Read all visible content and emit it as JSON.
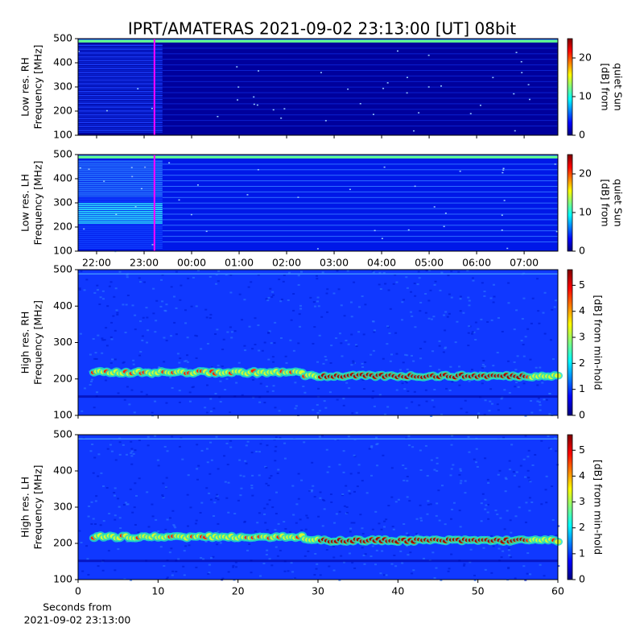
{
  "title": "IPRT/AMATERAS 2021-09-02 23:13:00 [UT]   08bit",
  "chart_data": [
    {
      "type": "spectrogram",
      "ylabel": [
        "Low res. RH",
        "Frequency [MHz]"
      ],
      "ylim": [
        100,
        500
      ],
      "yticks": [
        100,
        200,
        300,
        400,
        500
      ],
      "xlim": [
        21.61,
        31.71
      ],
      "xticks": [
        {
          "value": 22,
          "label": "22:00"
        },
        {
          "value": 23,
          "label": "23:00"
        },
        {
          "value": 24,
          "label": "00:00"
        },
        {
          "value": 25,
          "label": "01:00"
        },
        {
          "value": 26,
          "label": "02:00"
        },
        {
          "value": 27,
          "label": "03:00"
        },
        {
          "value": 28,
          "label": "04:00"
        },
        {
          "value": 29,
          "label": "05:00"
        },
        {
          "value": 30,
          "label": "06:00"
        },
        {
          "value": 31,
          "label": "07:00"
        }
      ],
      "show_xticklabels": false,
      "marker": 23.217,
      "marker_color": "#ff00ff",
      "style": "low-rh",
      "colorbar": {
        "label": [
          "[dB] from",
          "quiet Sun"
        ],
        "lim": [
          0,
          25
        ],
        "ticks": [
          0,
          10,
          20
        ]
      }
    },
    {
      "type": "spectrogram",
      "ylabel": [
        "Low res. LH",
        "Frequency [MHz]"
      ],
      "ylim": [
        100,
        500
      ],
      "yticks": [
        100,
        200,
        300,
        400,
        500
      ],
      "xlim": [
        21.61,
        31.71
      ],
      "xticks": [
        {
          "value": 22,
          "label": "22:00"
        },
        {
          "value": 23,
          "label": "23:00"
        },
        {
          "value": 24,
          "label": "00:00"
        },
        {
          "value": 25,
          "label": "01:00"
        },
        {
          "value": 26,
          "label": "02:00"
        },
        {
          "value": 27,
          "label": "03:00"
        },
        {
          "value": 28,
          "label": "04:00"
        },
        {
          "value": 29,
          "label": "05:00"
        },
        {
          "value": 30,
          "label": "06:00"
        },
        {
          "value": 31,
          "label": "07:00"
        }
      ],
      "show_xticklabels": true,
      "marker": 23.217,
      "marker_color": "#ff00ff",
      "style": "low-lh",
      "colorbar": {
        "label": [
          "[dB] from",
          "quiet Sun"
        ],
        "lim": [
          0,
          25
        ],
        "ticks": [
          0,
          10,
          20
        ]
      }
    },
    {
      "type": "spectrogram",
      "ylabel": [
        "High res. RH",
        "Frequency [MHz]"
      ],
      "ylim": [
        100,
        500
      ],
      "yticks": [
        100,
        200,
        300,
        400,
        500
      ],
      "xlim": [
        0,
        60
      ],
      "xticks": [
        0,
        10,
        20,
        30,
        40,
        50,
        60
      ],
      "show_xticklabels": false,
      "style": "high",
      "colorbar": {
        "label": [
          "[dB] from min-hold"
        ],
        "lim": [
          0,
          5.6
        ],
        "ticks": [
          0,
          1,
          2,
          3,
          4,
          5
        ]
      }
    },
    {
      "type": "spectrogram",
      "ylabel": [
        "High res. LH",
        "Frequency [MHz]"
      ],
      "ylim": [
        100,
        500
      ],
      "yticks": [
        100,
        200,
        300,
        400,
        500
      ],
      "xlim": [
        0,
        60
      ],
      "xticks": [
        0,
        10,
        20,
        30,
        40,
        50,
        60
      ],
      "show_xticklabels": true,
      "style": "high",
      "xlabel": [
        "Seconds from",
        "2021-09-02 23:13:00"
      ],
      "colorbar": {
        "label": [
          "[dB] from min-hold"
        ],
        "lim": [
          0,
          5.6
        ],
        "ticks": [
          0,
          1,
          2,
          3,
          4,
          5
        ]
      }
    }
  ]
}
